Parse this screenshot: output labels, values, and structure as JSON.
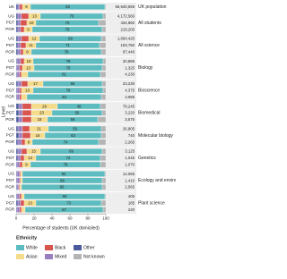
{
  "chart_data": {
    "type": "stacked_bar_h",
    "x_label": "Percentage of students (UK domiciled)",
    "y_label": "Level",
    "legend_title": "Ethnicity",
    "categories": [
      "UK",
      "UG",
      "PGT",
      "PGR",
      "UG",
      "PGT",
      "PGR",
      "UG",
      "PGT",
      "PGR",
      "UG",
      "PGT",
      "PGR",
      "UG",
      "PGT",
      "PGR",
      "UG",
      "PGT",
      "PGR",
      "UG",
      "PGT",
      "PGR",
      "UG",
      "PGT",
      "PGR",
      "UG",
      "PGT",
      "PGR"
    ],
    "group_names": [
      "UK population",
      "All students",
      "All science",
      "Biology",
      "Bioscience",
      "Biomedical",
      "Molecular biology",
      "Genetics",
      "Ecology and environment",
      "Plant science"
    ],
    "n_labels": [
      "66,940,559",
      "4,172,560",
      "434,860",
      "219,205",
      "1,664,425",
      "153,750",
      "97,440",
      "20,885",
      "1,325",
      "4,230",
      "23,230",
      "4,375",
      "3,985",
      "78,245",
      "3,220",
      "3,575",
      "26,805",
      "740",
      "2,265",
      "3,125",
      "1,045",
      "1,070",
      "14,065",
      "1,410",
      "2,565",
      "405",
      "185",
      "220"
    ],
    "xlim": [
      0,
      100
    ],
    "xticks": [
      0,
      20,
      40,
      60,
      80,
      100
    ],
    "series": [
      {
        "name": "Other",
        "color": "#4a5a9c",
        "values": [
          2,
          2,
          2,
          2,
          2,
          2,
          2,
          1,
          1,
          1,
          2,
          1,
          1,
          3,
          3,
          3,
          2,
          3,
          2,
          2,
          2,
          1,
          1,
          1,
          1,
          1,
          2,
          1
        ]
      },
      {
        "name": "Mixed",
        "color": "#9a7fc0",
        "values": [
          2,
          4,
          3,
          3,
          4,
          3,
          3,
          4,
          3,
          3,
          4,
          3,
          3,
          4,
          4,
          4,
          5,
          4,
          4,
          4,
          3,
          3,
          3,
          3,
          2,
          3,
          3,
          3
        ]
      },
      {
        "name": "Black",
        "color": "#d9534f",
        "values": [
          3,
          8,
          7,
          4,
          8,
          6,
          3,
          4,
          3,
          2,
          7,
          2,
          2,
          10,
          10,
          10,
          8,
          9,
          4,
          6,
          4,
          3,
          1,
          1,
          1,
          2,
          4,
          2
        ]
      },
      {
        "name": "Asian",
        "color": "#f5dc8c",
        "values": [
          9,
          13,
          10,
          9,
          12,
          11,
          9,
          10,
          13,
          7,
          17,
          13,
          6,
          29,
          23,
          18,
          21,
          16,
          8,
          15,
          13,
          9,
          2,
          2,
          2,
          3,
          13,
          4
        ]
      },
      {
        "name": "White",
        "color": "#5dbcbf",
        "values": [
          83,
          70,
          70,
          78,
          69,
          71,
          78,
          78,
          76,
          81,
          66,
          78,
          83,
          48,
          56,
          56,
          59,
          63,
          74,
          69,
          72,
          78,
          92,
          89,
          90,
          90,
          73,
          87
        ]
      },
      {
        "name": "Not known",
        "color": "#b5b5b5",
        "values": [
          1,
          3,
          8,
          4,
          5,
          7,
          5,
          3,
          4,
          6,
          4,
          3,
          5,
          6,
          4,
          9,
          5,
          5,
          8,
          4,
          6,
          6,
          1,
          4,
          4,
          1,
          5,
          3
        ]
      }
    ]
  }
}
